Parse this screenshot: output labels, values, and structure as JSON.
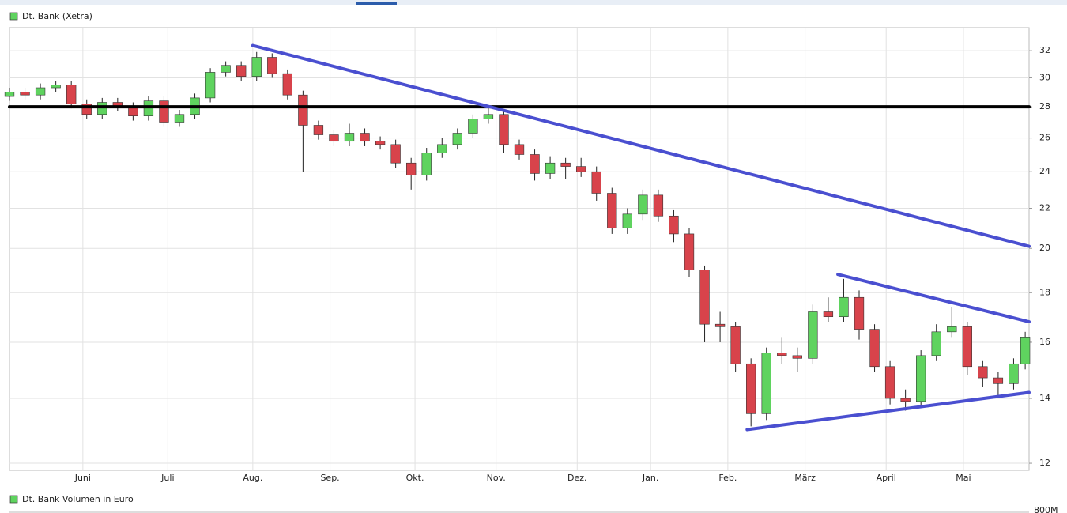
{
  "chart_data": {
    "type": "candlestick",
    "legend": "Dt. Bank (Xetra)",
    "log_scale": true,
    "grid": true,
    "up_color": "#5fd35f",
    "down_color": "#d8434b",
    "x": [
      0,
      4,
      8,
      12,
      16,
      20,
      24,
      28,
      32,
      36,
      40,
      44,
      48,
      52,
      56,
      60,
      64,
      68,
      72,
      76,
      80,
      84,
      88,
      92,
      96,
      100,
      104,
      108,
      112,
      116,
      120,
      124,
      128,
      132,
      136,
      140,
      144,
      148,
      152,
      156,
      160,
      164,
      168,
      172,
      176,
      180,
      184,
      188,
      192,
      196,
      200,
      204,
      208,
      212,
      216,
      220,
      224,
      228,
      232,
      236,
      240,
      244,
      248,
      252,
      256,
      260,
      263
    ],
    "open": [
      28.7,
      29,
      28.8,
      29.3,
      29.5,
      28.2,
      27.5,
      28.3,
      28.0,
      27.4,
      28.4,
      27.0,
      27.5,
      28.6,
      30.4,
      30.9,
      30.1,
      31.5,
      30.3,
      28.8,
      26.8,
      26.2,
      25.8,
      26.3,
      25.8,
      25.6,
      24.5,
      23.8,
      25.1,
      25.6,
      26.3,
      27.2,
      27.5,
      25.6,
      25.0,
      23.9,
      24.5,
      24.3,
      24.0,
      22.8,
      21.0,
      21.7,
      22.7,
      21.6,
      20.7,
      19.0,
      16.7,
      16.6,
      15.2,
      13.5,
      15.6,
      15.5,
      15.4,
      17.2,
      17.0,
      17.8,
      16.5,
      15.1,
      14.0,
      13.9,
      15.5,
      16.4,
      16.6,
      15.1,
      14.7,
      14.5,
      15.2
    ],
    "high": [
      29.3,
      29.3,
      29.6,
      29.8,
      29.8,
      28.5,
      28.6,
      28.6,
      28.3,
      28.7,
      28.7,
      27.8,
      28.9,
      30.7,
      31.2,
      31.2,
      31.9,
      31.8,
      30.6,
      29.1,
      27.1,
      26.5,
      26.9,
      26.6,
      26.1,
      25.9,
      24.8,
      25.4,
      26.0,
      26.6,
      27.5,
      28.0,
      27.8,
      25.9,
      25.3,
      24.9,
      24.8,
      24.8,
      24.3,
      23.1,
      22.0,
      23.0,
      23.0,
      21.9,
      21.0,
      19.2,
      17.2,
      16.8,
      15.4,
      15.8,
      16.2,
      15.8,
      17.5,
      17.8,
      18.6,
      18.1,
      16.7,
      15.3,
      14.3,
      15.7,
      16.7,
      17.4,
      16.8,
      15.3,
      14.9,
      15.4,
      16.4
    ],
    "low": [
      28.4,
      28.5,
      28.5,
      29.0,
      27.9,
      27.2,
      27.2,
      27.7,
      27.1,
      27.1,
      26.7,
      26.7,
      27.2,
      28.3,
      30.1,
      29.8,
      29.8,
      30.0,
      28.5,
      24.0,
      25.9,
      25.5,
      25.5,
      25.5,
      25.3,
      24.2,
      23.0,
      23.5,
      24.8,
      25.3,
      26.0,
      26.9,
      25.1,
      24.7,
      23.5,
      23.6,
      23.6,
      23.7,
      22.4,
      20.7,
      20.7,
      21.4,
      21.3,
      20.3,
      18.7,
      16.0,
      16.0,
      14.9,
      13.1,
      13.3,
      15.2,
      14.9,
      15.2,
      16.8,
      16.8,
      16.1,
      14.9,
      13.8,
      13.6,
      13.7,
      15.3,
      16.2,
      14.8,
      14.4,
      14.1,
      14.3,
      15.0
    ],
    "close": [
      29,
      28.8,
      29.3,
      29.5,
      28.2,
      27.5,
      28.3,
      28.0,
      27.4,
      28.4,
      27.0,
      27.5,
      28.6,
      30.4,
      30.9,
      30.1,
      31.5,
      30.3,
      28.8,
      26.8,
      26.2,
      25.8,
      26.3,
      25.8,
      25.6,
      24.5,
      23.8,
      25.1,
      25.6,
      26.3,
      27.2,
      27.5,
      25.6,
      25.0,
      23.9,
      24.5,
      24.3,
      24.0,
      22.8,
      21.0,
      21.7,
      22.7,
      21.6,
      20.7,
      19.0,
      16.7,
      16.6,
      15.2,
      13.5,
      15.6,
      15.5,
      15.4,
      17.2,
      17.0,
      17.8,
      16.5,
      15.1,
      14.0,
      13.9,
      15.5,
      16.4,
      16.6,
      15.1,
      14.7,
      14.5,
      15.2,
      16.2
    ],
    "xlim": [
      0,
      264
    ],
    "xticks": [
      {
        "value": 19,
        "label": "Juni"
      },
      {
        "value": 41,
        "label": "Juli"
      },
      {
        "value": 63,
        "label": "Aug."
      },
      {
        "value": 83,
        "label": "Sep."
      },
      {
        "value": 105,
        "label": "Okt."
      },
      {
        "value": 126,
        "label": "Nov."
      },
      {
        "value": 147,
        "label": "Dez."
      },
      {
        "value": 166,
        "label": "Jan."
      },
      {
        "value": 186,
        "label": "Feb."
      },
      {
        "value": 206,
        "label": "März"
      },
      {
        "value": 227,
        "label": "April"
      },
      {
        "value": 247,
        "label": "Mai"
      }
    ],
    "ylim": [
      11.8,
      33.8
    ],
    "yticks": [
      12,
      14,
      16,
      18,
      20,
      22,
      24,
      26,
      28,
      30,
      32
    ],
    "trendlines": [
      {
        "color": "#000000",
        "x": [
          0,
          264
        ],
        "y": [
          28,
          28
        ]
      },
      {
        "color": "#4a4fd0",
        "x": [
          63,
          264
        ],
        "y": [
          32.4,
          20.1
        ]
      },
      {
        "color": "#4a4fd0",
        "x": [
          214.5,
          264
        ],
        "y": [
          18.8,
          16.8
        ]
      },
      {
        "color": "#4a4fd0",
        "x": [
          191,
          264
        ],
        "y": [
          13.0,
          14.2
        ]
      }
    ],
    "volume_pane": {
      "legend": "Dt. Bank Volumen in Euro",
      "yticks": [
        {
          "value": 800000000,
          "label": "800M"
        }
      ]
    }
  }
}
